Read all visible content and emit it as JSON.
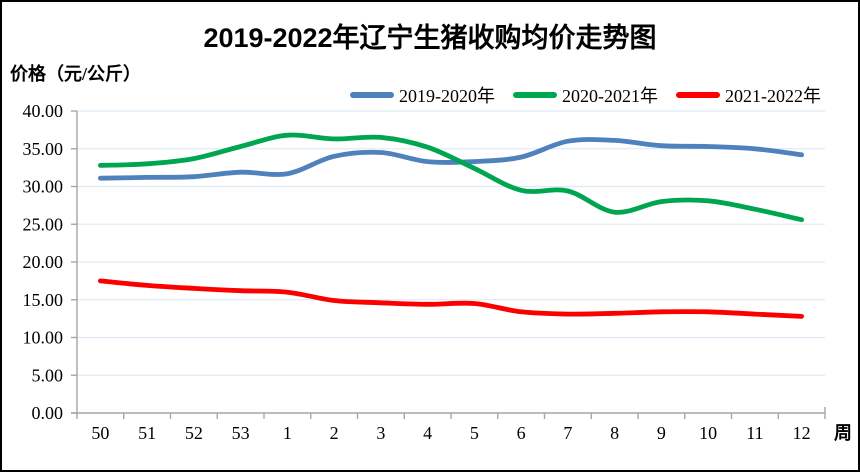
{
  "title": "2019-2022年辽宁生猪收购均价走势图",
  "y_axis_label": "价格（元/公斤）",
  "x_axis_unit": "周",
  "legend": [
    {
      "label": "2019-2020年",
      "color": "#4F81BD"
    },
    {
      "label": "2020-2021年",
      "color": "#00A550"
    },
    {
      "label": "2021-2022年",
      "color": "#FC0000"
    }
  ],
  "chart_data": {
    "type": "line",
    "title": "2019-2022年辽宁生猪收购均价走势图",
    "xlabel": "周",
    "ylabel": "价格（元/公斤）",
    "categories": [
      "50",
      "51",
      "52",
      "53",
      "1",
      "2",
      "3",
      "4",
      "5",
      "6",
      "7",
      "8",
      "9",
      "10",
      "11",
      "12"
    ],
    "series": [
      {
        "name": "2019-2020年",
        "color": "#4F81BD",
        "values": [
          31.1,
          31.2,
          31.3,
          31.9,
          31.7,
          34.0,
          34.5,
          33.3,
          33.3,
          33.9,
          36.0,
          36.1,
          35.4,
          35.3,
          35.0,
          34.2
        ]
      },
      {
        "name": "2020-2021年",
        "color": "#00A550",
        "values": [
          32.8,
          33.0,
          33.7,
          35.3,
          36.8,
          36.3,
          36.5,
          35.2,
          32.4,
          29.5,
          29.4,
          26.6,
          28.0,
          28.1,
          27.0,
          25.6
        ]
      },
      {
        "name": "2021-2022年",
        "color": "#FC0000",
        "values": [
          17.5,
          16.9,
          16.5,
          16.2,
          16.0,
          14.9,
          14.6,
          14.4,
          14.5,
          13.4,
          13.1,
          13.2,
          13.4,
          13.4,
          13.1,
          12.8
        ]
      }
    ],
    "ylim": [
      0,
      40
    ],
    "ytick_step": 5,
    "ytick_labels": [
      "0.00",
      "5.00",
      "10.00",
      "15.00",
      "20.00",
      "25.00",
      "30.00",
      "35.00",
      "40.00"
    ],
    "grid": true,
    "smooth": true,
    "legend_position": "top",
    "gridline_color": "#DEEBF7",
    "axis_color": "#A6A6A6",
    "tick_label_color": "#000000"
  }
}
